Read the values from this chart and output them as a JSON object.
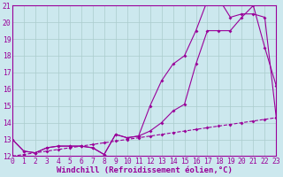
{
  "background_color": "#cce8ee",
  "grid_color": "#aacccc",
  "line_color": "#990099",
  "x_min": 0,
  "x_max": 23,
  "y_min": 12,
  "y_max": 21,
  "series1_x": [
    0,
    1,
    2,
    3,
    4,
    5,
    6,
    7,
    8,
    9,
    10,
    11,
    12,
    13,
    14,
    15,
    16,
    17,
    18,
    19,
    20,
    21,
    22,
    23
  ],
  "series1_y": [
    13.0,
    12.3,
    12.2,
    12.5,
    12.6,
    12.6,
    12.6,
    12.5,
    12.1,
    13.3,
    13.1,
    13.2,
    13.5,
    14.0,
    14.7,
    15.1,
    17.5,
    19.5,
    19.5,
    19.5,
    20.3,
    21.0,
    18.5,
    16.2
  ],
  "series2_x": [
    0,
    1,
    2,
    3,
    4,
    5,
    6,
    7,
    8,
    9,
    10,
    11,
    12,
    13,
    14,
    15,
    16,
    17,
    18,
    19,
    20,
    21,
    22,
    23
  ],
  "series2_y": [
    13.0,
    12.3,
    12.2,
    12.5,
    12.6,
    12.6,
    12.6,
    12.5,
    12.1,
    13.3,
    13.1,
    13.2,
    15.0,
    16.5,
    17.5,
    18.0,
    19.5,
    21.3,
    21.4,
    20.3,
    20.5,
    20.5,
    20.3,
    14.3
  ],
  "series3_x": [
    0,
    1,
    2,
    3,
    4,
    5,
    6,
    7,
    8,
    9,
    10,
    11,
    12,
    13,
    14,
    15,
    16,
    17,
    18,
    19,
    20,
    21,
    22,
    23
  ],
  "series3_y": [
    12.0,
    12.1,
    12.2,
    12.3,
    12.4,
    12.5,
    12.6,
    12.7,
    12.8,
    12.9,
    13.0,
    13.1,
    13.2,
    13.3,
    13.4,
    13.5,
    13.6,
    13.7,
    13.8,
    13.9,
    14.0,
    14.1,
    14.2,
    14.3
  ],
  "xtick_labels": [
    "0",
    "1",
    "2",
    "3",
    "4",
    "5",
    "6",
    "7",
    "8",
    "9",
    "10",
    "11",
    "12",
    "13",
    "14",
    "15",
    "16",
    "17",
    "18",
    "19",
    "20",
    "21",
    "22",
    "23"
  ],
  "ytick_labels": [
    "12",
    "13",
    "14",
    "15",
    "16",
    "17",
    "18",
    "19",
    "20",
    "21"
  ],
  "xlabel": "Windchill (Refroidissement éolien,°C)",
  "xlabel_fontsize": 6.5,
  "tick_fontsize": 5.8,
  "marker_size": 2.0,
  "line_width": 0.8
}
